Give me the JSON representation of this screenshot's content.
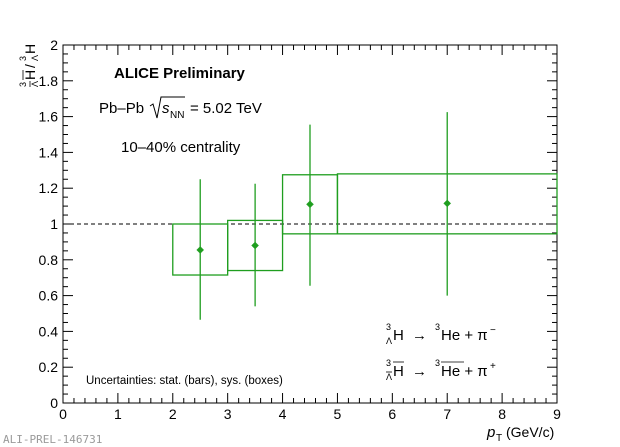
{
  "chart_data": {
    "type": "scatter",
    "title": "ALICE Preliminary",
    "xlabel": "p_T (GeV/c)",
    "ylabel": "anti-hypertriton / hypertriton",
    "xlim": [
      0,
      9
    ],
    "ylim": [
      0,
      2
    ],
    "x_ticks": [
      "0",
      "1",
      "2",
      "3",
      "4",
      "5",
      "6",
      "7",
      "8",
      "9"
    ],
    "y_ticks": [
      "0",
      "0.2",
      "0.4",
      "0.6",
      "0.8",
      "1",
      "1.2",
      "1.4",
      "1.6",
      "1.8",
      "2"
    ],
    "reference_line": 1,
    "series": [
      {
        "color": "#1f9e1f",
        "points": [
          {
            "x": 2.5,
            "y": 0.855,
            "stat_low": 0.465,
            "stat_high": 1.25,
            "xlo": 2,
            "xhi": 3,
            "sys_low": 0.715,
            "sys_high": 1.0
          },
          {
            "x": 3.5,
            "y": 0.88,
            "stat_low": 0.54,
            "stat_high": 1.225,
            "xlo": 3,
            "xhi": 4,
            "sys_low": 0.74,
            "sys_high": 1.02
          },
          {
            "x": 4.5,
            "y": 1.11,
            "stat_low": 0.655,
            "stat_high": 1.555,
            "xlo": 4,
            "xhi": 5,
            "sys_low": 0.945,
            "sys_high": 1.275
          },
          {
            "x": 7,
            "y": 1.115,
            "stat_low": 0.6,
            "stat_high": 1.625,
            "xlo": 5,
            "xhi": 9,
            "sys_low": 0.945,
            "sys_high": 1.28
          }
        ]
      }
    ]
  },
  "labels": {
    "collision_system": "Pb–Pb",
    "energy": "= 5.02 TeV",
    "centrality": "10–40% centrality",
    "decay1_lhs": "H",
    "decay1_rhs": "He + π",
    "decay1_charge": "−",
    "decay2_lhs": "H",
    "decay2_rhs": "He + π",
    "decay2_charge": "+",
    "uncertainties": "Uncertainties: stat. (bars), sys. (boxes)",
    "xaxis_unit": "(GeV/c)",
    "watermark": "ALI-PREL-146731"
  },
  "colors": {
    "data": "#1f9e1f",
    "axis": "#000000"
  }
}
